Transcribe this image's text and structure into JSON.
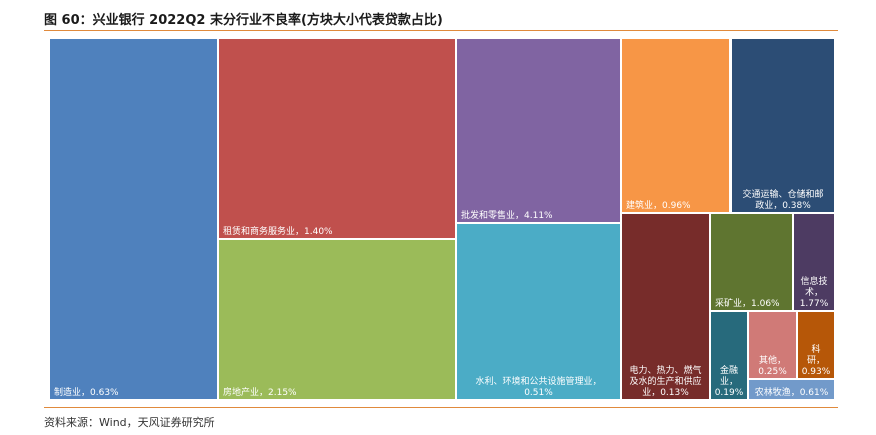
{
  "title": "图 60：兴业银行 2022Q2 末分行业不良率(方块大小代表贷款占比)",
  "source": "资料来源：Wind，天风证券研究所",
  "chart_data": {
    "type": "treemap",
    "title": "图 60：兴业银行 2022Q2 末分行业不良率(方块大小代表贷款占比)",
    "unit": "%",
    "items": [
      {
        "name": "制造业",
        "npl_ratio": 0.63,
        "label_lines": [
          "制造业，0.63%"
        ],
        "color": "#4f81bd"
      },
      {
        "name": "租赁和商务服务业",
        "npl_ratio": 1.4,
        "label_lines": [
          "租赁和商务服务业，1.40%"
        ],
        "color": "#c0504d"
      },
      {
        "name": "房地产业",
        "npl_ratio": 2.15,
        "label_lines": [
          "房地产业，2.15%"
        ],
        "color": "#9bbb59"
      },
      {
        "name": "批发和零售业",
        "npl_ratio": 4.11,
        "label_lines": [
          "批发和零售业，4.11%"
        ],
        "color": "#8064a2"
      },
      {
        "name": "水利、环境和公共设施管理业",
        "npl_ratio": 0.51,
        "label_lines": [
          "水利、环境和公共设施管理业，",
          "0.51%"
        ],
        "color": "#4bacc6"
      },
      {
        "name": "建筑业",
        "npl_ratio": 0.96,
        "label_lines": [
          "建筑业，0.96%"
        ],
        "color": "#f79646"
      },
      {
        "name": "交通运输、仓储和邮政业",
        "npl_ratio": 0.38,
        "label_lines": [
          "交通运输、仓储和邮",
          "政业，0.38%"
        ],
        "color": "#2c4d75"
      },
      {
        "name": "电力、热力、燃气及水的生产和供应业",
        "npl_ratio": 0.13,
        "label_lines": [
          "电力、热力、燃气",
          "及水的生产和供应",
          "业，0.13%"
        ],
        "color": "#772c2a"
      },
      {
        "name": "采矿业",
        "npl_ratio": 1.06,
        "label_lines": [
          "采矿业，1.06%"
        ],
        "color": "#5f7530"
      },
      {
        "name": "信息技术",
        "npl_ratio": 1.77,
        "label_lines": [
          "信息技",
          "术，",
          "1.77%"
        ],
        "color": "#4d3b62"
      },
      {
        "name": "金融业",
        "npl_ratio": 0.19,
        "label_lines": [
          "金融",
          "业，",
          "0.19%"
        ],
        "color": "#276a7c"
      },
      {
        "name": "其他",
        "npl_ratio": 0.25,
        "label_lines": [
          "其他，",
          "0.25%"
        ],
        "color": "#d07a77"
      },
      {
        "name": "科研",
        "npl_ratio": 0.93,
        "label_lines": [
          "科",
          "研，",
          "0.93%"
        ],
        "color": "#b65708"
      },
      {
        "name": "农林牧渔",
        "npl_ratio": 0.61,
        "label_lines": [
          "农林牧渔，0.61%"
        ],
        "color": "#729aca"
      }
    ]
  }
}
